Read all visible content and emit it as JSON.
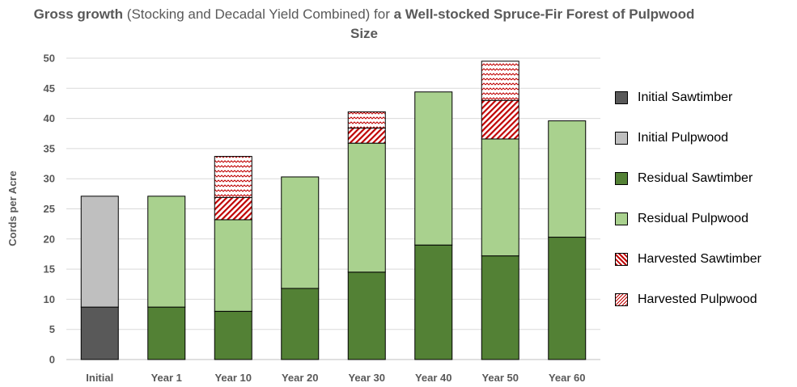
{
  "chart_data": {
    "type": "bar",
    "stacked": true,
    "title": {
      "part1_bold": "Gross growth",
      "part2": " (Stocking and Decadal Yield Combined) for ",
      "part3_bold": "a Well-stocked Spruce-Fir Forest of Pulpwood Size"
    },
    "ylabel": "Cords per Acre",
    "xlabel": "",
    "ylim": [
      0,
      50
    ],
    "yticks": [
      0,
      5,
      10,
      15,
      20,
      25,
      30,
      35,
      40,
      45,
      50
    ],
    "grid": true,
    "legend_position": "right",
    "categories": [
      "Initial",
      "Year 1",
      "Year 10",
      "Year 20",
      "Year 30",
      "Year 40",
      "Year 50",
      "Year 60"
    ],
    "series": [
      {
        "name": "Initial Sawtimber",
        "color": "#595959",
        "pattern": "solid",
        "values": [
          8.7,
          0,
          0,
          0,
          0,
          0,
          0,
          0
        ]
      },
      {
        "name": "Initial Pulpwood",
        "color": "#bfbfbf",
        "pattern": "solid",
        "values": [
          18.4,
          0,
          0,
          0,
          0,
          0,
          0,
          0
        ]
      },
      {
        "name": "Residual Sawtimber",
        "color": "#538135",
        "pattern": "solid",
        "values": [
          0,
          8.7,
          8.0,
          11.8,
          14.5,
          19.0,
          17.2,
          20.3
        ]
      },
      {
        "name": "Residual Pulpwood",
        "color": "#a9d18e",
        "pattern": "solid",
        "values": [
          0,
          18.4,
          15.2,
          18.5,
          21.4,
          25.4,
          19.4,
          19.3
        ]
      },
      {
        "name": "Harvested Sawtimber",
        "color": "#c00000",
        "pattern": "diagonal",
        "values": [
          0,
          0,
          3.7,
          0,
          2.5,
          0,
          6.4,
          0
        ]
      },
      {
        "name": "Harvested Pulpwood",
        "color": "#c00000",
        "pattern": "wave",
        "values": [
          0,
          0,
          6.8,
          0,
          2.7,
          0,
          6.5,
          0
        ]
      }
    ]
  }
}
